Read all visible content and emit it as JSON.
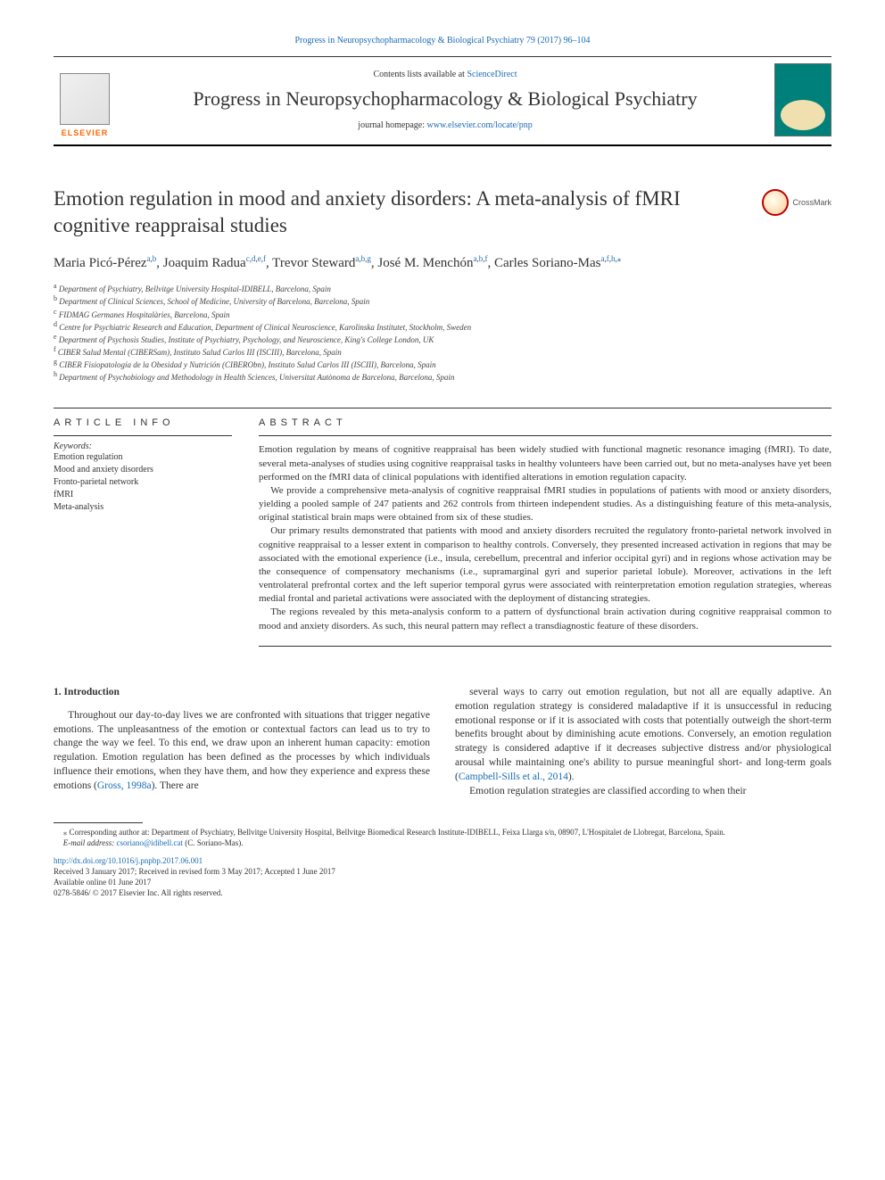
{
  "top_link": {
    "journal_ref": "Progress in Neuropsychopharmacology & Biological Psychiatry 79 (2017) 96–104"
  },
  "header": {
    "contents_prefix": "Contents lists available at ",
    "contents_link": "ScienceDirect",
    "journal_title": "Progress in Neuropsychopharmacology & Biological Psychiatry",
    "homepage_prefix": "journal homepage: ",
    "homepage_url": "www.elsevier.com/locate/pnp",
    "elsevier_label": "ELSEVIER"
  },
  "crossmark_label": "CrossMark",
  "article_title": "Emotion regulation in mood and anxiety disorders: A meta-analysis of fMRI cognitive reappraisal studies",
  "authors_html": "Maria Picó-Pérez<sup><a href='#'>a</a>,<a href='#'>b</a></sup>, Joaquim Radua<sup><a href='#'>c</a>,<a href='#'>d</a>,<a href='#'>e</a>,<a href='#'>f</a></sup>, Trevor Steward<sup><a href='#'>a</a>,<a href='#'>b</a>,<a href='#'>g</a></sup>, José M. Menchón<sup><a href='#'>a</a>,<a href='#'>b</a>,<a href='#'>f</a></sup>, Carles Soriano-Mas<sup><a href='#'>a</a>,<a href='#'>f</a>,<a href='#'>h</a>,<a href='#'>⁎</a></sup>",
  "affiliations": [
    {
      "key": "a",
      "text": "Department of Psychiatry, Bellvitge University Hospital-IDIBELL, Barcelona, Spain"
    },
    {
      "key": "b",
      "text": "Department of Clinical Sciences, School of Medicine, University of Barcelona, Barcelona, Spain"
    },
    {
      "key": "c",
      "text": "FIDMAG Germanes Hospitalàries, Barcelona, Spain"
    },
    {
      "key": "d",
      "text": "Centre for Psychiatric Research and Education, Department of Clinical Neuroscience, Karolinska Institutet, Stockholm, Sweden"
    },
    {
      "key": "e",
      "text": "Department of Psychosis Studies, Institute of Psychiatry, Psychology, and Neuroscience, King's College London, UK"
    },
    {
      "key": "f",
      "text": "CIBER Salud Mental (CIBERSam), Instituto Salud Carlos III (ISCIII), Barcelona, Spain"
    },
    {
      "key": "g",
      "text": "CIBER Fisiopatología de la Obesidad y Nutrición (CIBERObn), Instituto Salud Carlos III (ISCIII), Barcelona, Spain"
    },
    {
      "key": "h",
      "text": "Department of Psychobiology and Methodology in Health Sciences, Universitat Autònoma de Barcelona, Barcelona, Spain"
    }
  ],
  "info": {
    "heading": "ARTICLE INFO",
    "keywords_label": "Keywords:",
    "keywords": [
      "Emotion regulation",
      "Mood and anxiety disorders",
      "Fronto-parietal network",
      "fMRI",
      "Meta-analysis"
    ]
  },
  "abstract": {
    "heading": "ABSTRACT",
    "paragraphs": [
      "Emotion regulation by means of cognitive reappraisal has been widely studied with functional magnetic resonance imaging (fMRI). To date, several meta-analyses of studies using cognitive reappraisal tasks in healthy volunteers have been carried out, but no meta-analyses have yet been performed on the fMRI data of clinical populations with identified alterations in emotion regulation capacity.",
      "We provide a comprehensive meta-analysis of cognitive reappraisal fMRI studies in populations of patients with mood or anxiety disorders, yielding a pooled sample of 247 patients and 262 controls from thirteen independent studies. As a distinguishing feature of this meta-analysis, original statistical brain maps were obtained from six of these studies.",
      "Our primary results demonstrated that patients with mood and anxiety disorders recruited the regulatory fronto-parietal network involved in cognitive reappraisal to a lesser extent in comparison to healthy controls. Conversely, they presented increased activation in regions that may be associated with the emotional experience (i.e., insula, cerebellum, precentral and inferior occipital gyri) and in regions whose activation may be the consequence of compensatory mechanisms (i.e., supramarginal gyri and superior parietal lobule). Moreover, activations in the left ventrolateral prefrontal cortex and the left superior temporal gyrus were associated with reinterpretation emotion regulation strategies, whereas medial frontal and parietal activations were associated with the deployment of distancing strategies.",
      "The regions revealed by this meta-analysis conform to a pattern of dysfunctional brain activation during cognitive reappraisal common to mood and anxiety disorders. As such, this neural pattern may reflect a transdiagnostic feature of these disorders."
    ]
  },
  "body": {
    "heading": "1. Introduction",
    "col1_html": "Throughout our day-to-day lives we are confronted with situations that trigger negative emotions. The unpleasantness of the emotion or contextual factors can lead us to try to change the way we feel. To this end, we draw upon an inherent human capacity: emotion regulation. Emotion regulation has been defined as the processes by which individuals influence their emotions, when they have them, and how they experience and express these emotions (<a href='#'>Gross, 1998a</a>). There are",
    "col2_html": "several ways to carry out emotion regulation, but not all are equally adaptive. An emotion regulation strategy is considered maladaptive if it is unsuccessful in reducing emotional response or if it is associated with costs that potentially outweigh the short-term benefits brought about by diminishing acute emotions. Conversely, an emotion regulation strategy is considered adaptive if it decreases subjective distress and/or physiological arousal while maintaining one's ability to pursue meaningful short- and long-term goals (<a href='#'>Campbell-Sills et al., 2014</a>).",
    "col2_p2": "Emotion regulation strategies are classified according to when their"
  },
  "footnote": {
    "corresponding": "Corresponding author at: Department of Psychiatry, Bellvitge University Hospital, Bellvitge Biomedical Research Institute-IDIBELL, Feixa Llarga s/n, 08907, L'Hospitalet de Llobregat, Barcelona, Spain.",
    "email_label": "E-mail address: ",
    "email": "csoriano@idibell.cat",
    "email_name": " (C. Soriano-Mas)."
  },
  "doi": {
    "url": "http://dx.doi.org/10.1016/j.pnpbp.2017.06.001",
    "received": "Received 3 January 2017; Received in revised form 3 May 2017; Accepted 1 June 2017",
    "available": "Available online 01 June 2017",
    "issn": "0278-5846/ © 2017 Elsevier Inc. All rights reserved."
  },
  "colors": {
    "link": "#1a6cb3",
    "elsevier_orange": "#ff6600",
    "cover_teal": "#00807a",
    "text": "#333333"
  }
}
